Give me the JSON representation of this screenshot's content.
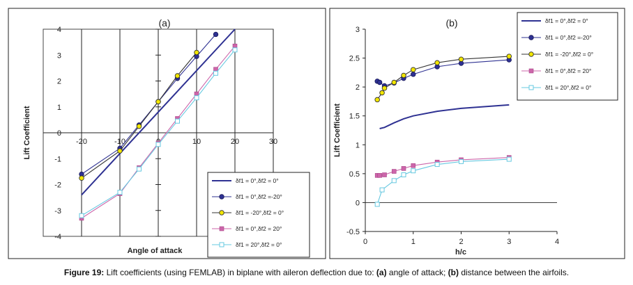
{
  "caption": {
    "label": "Figure 19:",
    "text_before_a": " Lift coefficients (using FEMLAB) in biplane with aileron deflection due to: ",
    "a_label": "(a)",
    "text_a": " angle of attack; ",
    "b_label": "(b)",
    "text_b": " distance between the airfoils."
  },
  "chart_data": [
    {
      "panel": "(a)",
      "type": "line",
      "title": "(a)",
      "xlabel": "Angle of attack",
      "ylabel": "Lift Coefficient",
      "xlim": [
        -30,
        30
      ],
      "ylim": [
        -4,
        4
      ],
      "x_ticks": [
        "-20",
        "-10",
        "0",
        "10",
        "20",
        "30"
      ],
      "y_ticks": [
        "-4",
        "-3",
        "-2",
        "-1",
        "0",
        "1",
        "2",
        "3",
        "4"
      ],
      "grid": "vertical lines at x ticks",
      "legend": "right",
      "series": [
        {
          "name": "δf1 = 0°,δf2 = 0°",
          "color": "#2e3192",
          "marker": "none",
          "x": [
            -20,
            20
          ],
          "y": [
            -2.4,
            4.0
          ]
        },
        {
          "name": "δf1 = 0°,δf2 =-20°",
          "color": "#2e3192",
          "marker": "circle",
          "x": [
            -20,
            -10,
            -5,
            0,
            5,
            10,
            15
          ],
          "y": [
            -1.6,
            -0.6,
            0.3,
            1.2,
            2.1,
            2.95,
            3.8
          ]
        },
        {
          "name": "δf1 = -20°,δf2 = 0°",
          "color": "#333333",
          "marker": "circle-yellow",
          "x": [
            -20,
            -10,
            -5,
            0,
            5,
            10
          ],
          "y": [
            -1.75,
            -0.7,
            0.25,
            1.2,
            2.2,
            3.1
          ]
        },
        {
          "name": "δf1 = 0°,δf2 = 20°",
          "color": "#cc66aa",
          "marker": "square",
          "x": [
            -20,
            -10,
            -5,
            0,
            5,
            10,
            15,
            20
          ],
          "y": [
            -3.3,
            -2.35,
            -1.35,
            -0.4,
            0.55,
            1.5,
            2.45,
            3.35
          ]
        },
        {
          "name": "δf1 = 20°,δf2 = 0°",
          "color": "#66c8e0",
          "marker": "square-open",
          "x": [
            -20,
            -10,
            -5,
            0,
            5,
            10,
            15,
            20
          ],
          "y": [
            -3.2,
            -2.3,
            -1.4,
            -0.45,
            0.45,
            1.35,
            2.3,
            3.2
          ]
        }
      ]
    },
    {
      "panel": "(b)",
      "type": "line",
      "title": "(b)",
      "xlabel": "h/c",
      "ylabel": "Lift Coefficient",
      "xlim": [
        0,
        4
      ],
      "ylim": [
        -0.5,
        3
      ],
      "x_ticks": [
        "0",
        "1",
        "2",
        "3",
        "4"
      ],
      "y_ticks": [
        "-0.5",
        "0",
        "0.5",
        "1",
        "1.5",
        "2",
        "2.5",
        "3"
      ],
      "grid": "none",
      "legend": "top-right",
      "series": [
        {
          "name": "δf1 = 0°,δf2 = 0°",
          "color": "#2e3192",
          "marker": "none",
          "x": [
            0.3,
            0.4,
            0.6,
            0.8,
            1.0,
            1.5,
            2.0,
            3.0
          ],
          "y": [
            1.28,
            1.3,
            1.38,
            1.45,
            1.5,
            1.58,
            1.63,
            1.69
          ]
        },
        {
          "name": "δf1 = 0°,δf2 =-20°",
          "color": "#2e3192",
          "marker": "circle",
          "x": [
            0.25,
            0.3,
            0.4,
            0.6,
            0.8,
            1.0,
            1.5,
            2.0,
            3.0
          ],
          "y": [
            2.1,
            2.08,
            2.02,
            2.07,
            2.15,
            2.22,
            2.35,
            2.41,
            2.47
          ]
        },
        {
          "name": "δf1 = -20°,δf2 = 0°",
          "color": "#333333",
          "marker": "circle-yellow",
          "x": [
            0.25,
            0.35,
            0.4,
            0.6,
            0.8,
            1.0,
            1.5,
            2.0,
            3.0
          ],
          "y": [
            1.78,
            1.9,
            1.98,
            2.08,
            2.2,
            2.3,
            2.42,
            2.48,
            2.53
          ]
        },
        {
          "name": "δf1 = 0°,δf2 = 20°",
          "color": "#cc66aa",
          "marker": "square",
          "x": [
            0.25,
            0.3,
            0.4,
            0.6,
            0.8,
            1.0,
            1.5,
            2.0,
            3.0
          ],
          "y": [
            0.47,
            0.47,
            0.48,
            0.54,
            0.59,
            0.64,
            0.7,
            0.74,
            0.78
          ]
        },
        {
          "name": "δf1 = 20°,δf2 = 0°",
          "color": "#66c8e0",
          "marker": "square-open",
          "x": [
            0.25,
            0.35,
            0.6,
            0.8,
            1.0,
            1.5,
            2.0,
            3.0
          ],
          "y": [
            -0.03,
            0.22,
            0.38,
            0.48,
            0.55,
            0.66,
            0.71,
            0.75
          ]
        }
      ]
    }
  ]
}
